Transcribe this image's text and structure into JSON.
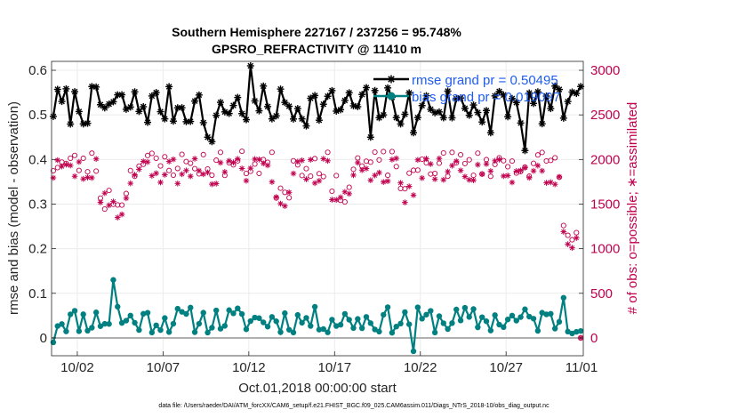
{
  "chart_data": {
    "type": "line",
    "title_line1": "Southern Hemisphere 227167 / 237256 = 95.748%",
    "title_line2": "GPSRO_REFRACTIVITY @ 11410 m",
    "xlabel": "Oct.01,2018 00:00:00 start",
    "ylabel_left": "rmse and bias (model - observation)",
    "ylabel_right": "# of obs: o=possible; ∗=assimilated",
    "footnote": "data file: /Users/raeder/DAI/ATM_forcXX/CAM6_setup/f.e21.FHIST_BGC.f09_025.CAM6assim.011/Diags_NTrS_2018-10/obs_diag_output.nc",
    "xlim": [
      0.5,
      31.5
    ],
    "x_tick_labels": [
      "10/02",
      "10/07",
      "10/12",
      "10/17",
      "10/22",
      "10/27",
      "11/01"
    ],
    "x_tick_values": [
      2,
      7,
      12,
      17,
      22,
      27,
      32
    ],
    "ylim_left": [
      -0.04,
      0.62
    ],
    "y_ticks_left": [
      "0",
      "0.1",
      "0.2",
      "0.3",
      "0.4",
      "0.5",
      "0.6"
    ],
    "ylim_right": [
      -200,
      3100
    ],
    "y_ticks_right": [
      "0",
      "500",
      "1000",
      "1500",
      "2000",
      "2500",
      "3000"
    ],
    "grid": true,
    "legend_position": "top-right",
    "series": [
      {
        "name": "rmse grand pr = 0.50495",
        "color": "#000000",
        "marker": "asterisk",
        "axis": "left",
        "seed": 7,
        "base": 0.52,
        "noise": 0.045,
        "spikes": [
          [
            9.6,
            0.45
          ],
          [
            9.8,
            0.44
          ],
          [
            12.2,
            0.61
          ],
          [
            19.1,
            0.45
          ],
          [
            21.5,
            0.46
          ],
          [
            26.0,
            0.46
          ],
          [
            28.2,
            0.42
          ],
          [
            30.6,
            0.53
          ]
        ]
      },
      {
        "name": "bias grand pr = 0.019097",
        "color": "#008080",
        "marker": "circle",
        "axis": "left",
        "seed": 11,
        "base": 0.04,
        "noise": 0.03,
        "spikes": [
          [
            0.6,
            -0.01
          ],
          [
            4.0,
            0.13
          ],
          [
            4.25,
            0.07
          ],
          [
            21.6,
            -0.03
          ],
          [
            30.4,
            0.09
          ]
        ]
      },
      {
        "name": "possible",
        "color": "#c0004e",
        "marker": "circle",
        "axis": "right",
        "seed": 23,
        "base": 1950,
        "noise": 150,
        "tail": [
          [
            30.25,
            1260
          ],
          [
            30.5,
            1150
          ],
          [
            30.75,
            1100
          ],
          [
            31.0,
            1180
          ],
          [
            31.25,
            1200
          ],
          [
            31.5,
            0
          ]
        ]
      },
      {
        "name": "assimilated",
        "color": "#c0004e",
        "marker": "asterisk",
        "axis": "right",
        "seed": 29,
        "base": 1870,
        "noise": 150,
        "tail": [
          [
            30.25,
            1190
          ],
          [
            30.5,
            1050
          ],
          [
            30.75,
            1010
          ],
          [
            31.0,
            1120
          ],
          [
            31.25,
            1140
          ],
          [
            31.5,
            0
          ]
        ]
      }
    ]
  }
}
